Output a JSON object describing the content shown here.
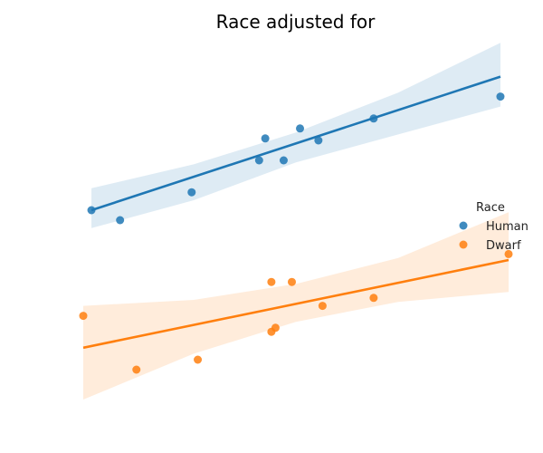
{
  "chart_data": {
    "type": "scatter",
    "title": "Race adjusted for",
    "xlabel": "",
    "ylabel": "",
    "axes_visible": false,
    "grid": false,
    "legend": {
      "title": "Race",
      "placement": "right"
    },
    "xlim": [
      -0.2,
      10.2
    ],
    "ylim": [
      0,
      20
    ],
    "series": [
      {
        "name": "Human",
        "color": "#1f77b4",
        "band_color": "#1f77b4",
        "points": [
          {
            "x": 0.0,
            "y": 11.5
          },
          {
            "x": 0.7,
            "y": 11.0
          },
          {
            "x": 2.45,
            "y": 12.4
          },
          {
            "x": 4.1,
            "y": 14.0
          },
          {
            "x": 4.25,
            "y": 15.1
          },
          {
            "x": 4.7,
            "y": 14.0
          },
          {
            "x": 5.1,
            "y": 15.6
          },
          {
            "x": 5.55,
            "y": 15.0
          },
          {
            "x": 6.9,
            "y": 16.1
          },
          {
            "x": 10.0,
            "y": 17.2
          }
        ],
        "fit": {
          "x0": 0.0,
          "y0": 11.5,
          "x1": 10.0,
          "y1": 18.2
        },
        "ci_upper": [
          {
            "x": 0.0,
            "y": 12.6
          },
          {
            "x": 2.5,
            "y": 13.8
          },
          {
            "x": 5.0,
            "y": 15.4
          },
          {
            "x": 7.5,
            "y": 17.4
          },
          {
            "x": 10.0,
            "y": 19.9
          }
        ],
        "ci_lower": [
          {
            "x": 0.0,
            "y": 10.6
          },
          {
            "x": 2.5,
            "y": 12.0
          },
          {
            "x": 5.0,
            "y": 13.9
          },
          {
            "x": 7.5,
            "y": 15.3
          },
          {
            "x": 10.0,
            "y": 16.7
          }
        ]
      },
      {
        "name": "Dwarf",
        "color": "#ff7f0e",
        "band_color": "#ff7f0e",
        "points": [
          {
            "x": -0.2,
            "y": 6.2
          },
          {
            "x": 1.1,
            "y": 3.5
          },
          {
            "x": 2.6,
            "y": 4.0
          },
          {
            "x": 4.4,
            "y": 7.9
          },
          {
            "x": 4.4,
            "y": 5.4
          },
          {
            "x": 4.5,
            "y": 5.6
          },
          {
            "x": 4.9,
            "y": 7.9
          },
          {
            "x": 5.65,
            "y": 6.7
          },
          {
            "x": 6.9,
            "y": 7.1
          },
          {
            "x": 10.2,
            "y": 9.3
          }
        ],
        "fit": {
          "x0": -0.2,
          "y0": 4.6,
          "x1": 10.2,
          "y1": 9.0
        },
        "ci_upper": [
          {
            "x": -0.2,
            "y": 6.7
          },
          {
            "x": 2.5,
            "y": 7.0
          },
          {
            "x": 5.0,
            "y": 7.8
          },
          {
            "x": 7.5,
            "y": 9.1
          },
          {
            "x": 10.2,
            "y": 11.4
          }
        ],
        "ci_lower": [
          {
            "x": -0.2,
            "y": 2.0
          },
          {
            "x": 2.5,
            "y": 4.3
          },
          {
            "x": 5.0,
            "y": 5.9
          },
          {
            "x": 7.5,
            "y": 6.9
          },
          {
            "x": 10.2,
            "y": 7.4
          }
        ]
      }
    ]
  }
}
